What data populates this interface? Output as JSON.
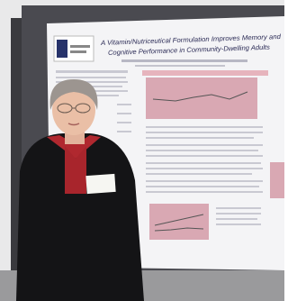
{
  "poster": {
    "title_lines": [
      "A Vitamin/Nutriceutical Formulation Improves Memory and",
      "Cognitive Performance in Community-Dwelling Adults"
    ]
  }
}
